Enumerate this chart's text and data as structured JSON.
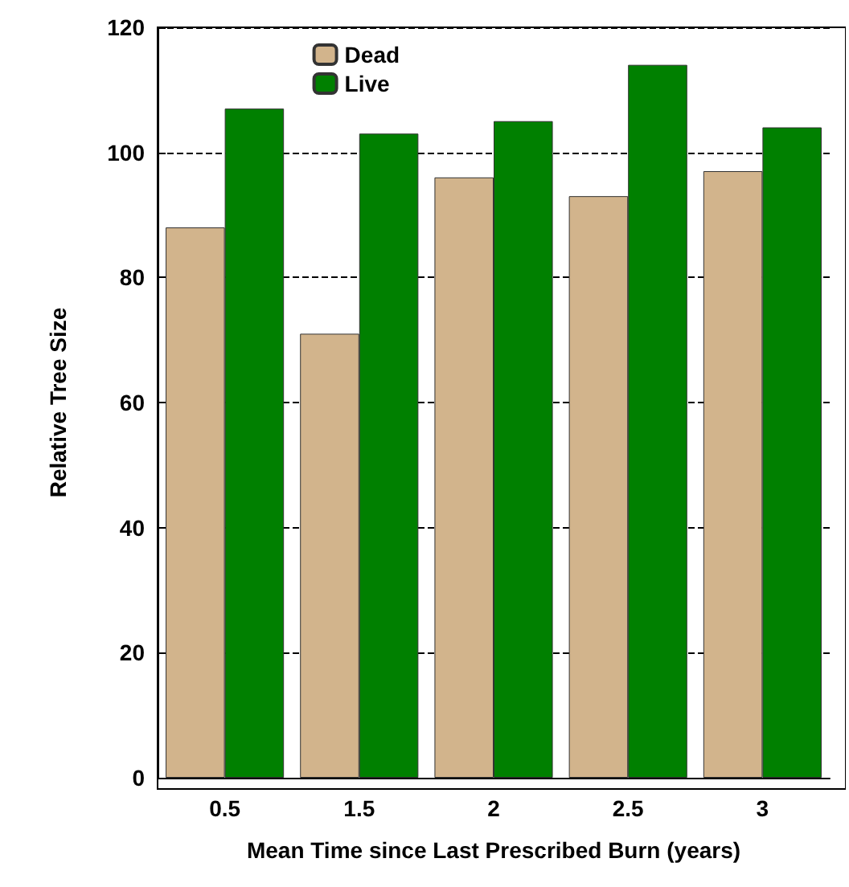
{
  "chart_data": {
    "type": "bar",
    "xlabel": "Mean Time since Last Prescribed Burn (years)",
    "ylabel": "Relative Tree Size",
    "categories": [
      "0.5",
      "1.5",
      "2",
      "2.5",
      "3"
    ],
    "series": [
      {
        "name": "Dead",
        "color": "#d2b48c",
        "values": [
          88,
          71,
          96,
          93,
          97
        ]
      },
      {
        "name": "Live",
        "color": "#008000",
        "values": [
          107,
          103,
          105,
          114,
          104
        ]
      }
    ],
    "ylim": [
      0,
      120
    ],
    "yticks": [
      0,
      20,
      40,
      60,
      80,
      100,
      120
    ],
    "grid": "y",
    "legend": "top"
  }
}
